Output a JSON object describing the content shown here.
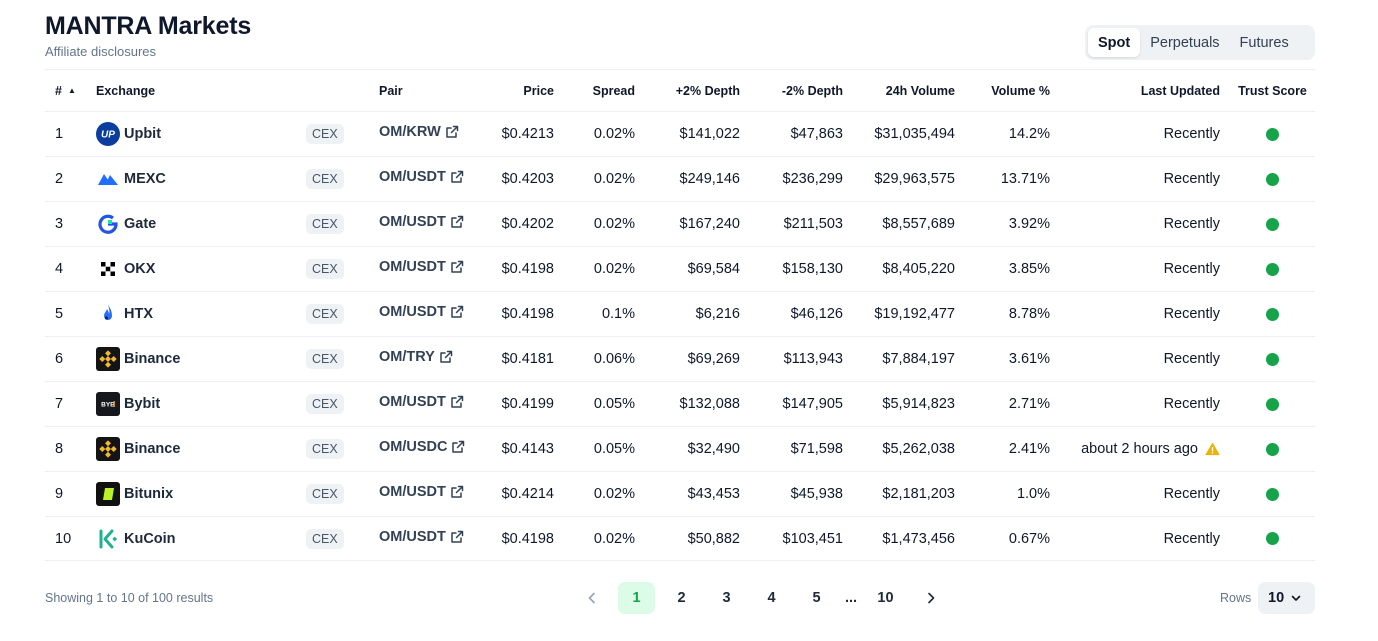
{
  "header": {
    "title": "MANTRA Markets",
    "subtitle": "Affiliate disclosures"
  },
  "tabs": [
    {
      "label": "Spot",
      "active": true
    },
    {
      "label": "Perpetuals",
      "active": false
    },
    {
      "label": "Futures",
      "active": false
    }
  ],
  "table": {
    "columns": {
      "rank": "#",
      "exchange": "Exchange",
      "pair": "Pair",
      "price": "Price",
      "spread": "Spread",
      "plus_depth": "+2% Depth",
      "minus_depth": "-2% Depth",
      "volume": "24h Volume",
      "volume_pct": "Volume %",
      "last_updated": "Last Updated",
      "trust": "Trust Score"
    },
    "rows": [
      {
        "rank": "1",
        "exchange": "Upbit",
        "logo": "upbit-logo",
        "type": "CEX",
        "pair": "OM/KRW",
        "price": "$0.4213",
        "spread": "0.02%",
        "plus_depth": "$141,022",
        "minus_depth": "$47,863",
        "volume": "$31,035,494",
        "volume_pct": "14.2%",
        "updated": "Recently",
        "warning": false,
        "trust_color": "#16a34a"
      },
      {
        "rank": "2",
        "exchange": "MEXC",
        "logo": "mexc-logo",
        "type": "CEX",
        "pair": "OM/USDT",
        "price": "$0.4203",
        "spread": "0.02%",
        "plus_depth": "$249,146",
        "minus_depth": "$236,299",
        "volume": "$29,963,575",
        "volume_pct": "13.71%",
        "updated": "Recently",
        "warning": false,
        "trust_color": "#16a34a"
      },
      {
        "rank": "3",
        "exchange": "Gate",
        "logo": "gate-logo",
        "type": "CEX",
        "pair": "OM/USDT",
        "price": "$0.4202",
        "spread": "0.02%",
        "plus_depth": "$167,240",
        "minus_depth": "$211,503",
        "volume": "$8,557,689",
        "volume_pct": "3.92%",
        "updated": "Recently",
        "warning": false,
        "trust_color": "#16a34a"
      },
      {
        "rank": "4",
        "exchange": "OKX",
        "logo": "okx-logo",
        "type": "CEX",
        "pair": "OM/USDT",
        "price": "$0.4198",
        "spread": "0.02%",
        "plus_depth": "$69,584",
        "minus_depth": "$158,130",
        "volume": "$8,405,220",
        "volume_pct": "3.85%",
        "updated": "Recently",
        "warning": false,
        "trust_color": "#16a34a"
      },
      {
        "rank": "5",
        "exchange": "HTX",
        "logo": "htx-logo",
        "type": "CEX",
        "pair": "OM/USDT",
        "price": "$0.4198",
        "spread": "0.1%",
        "plus_depth": "$6,216",
        "minus_depth": "$46,126",
        "volume": "$19,192,477",
        "volume_pct": "8.78%",
        "updated": "Recently",
        "warning": false,
        "trust_color": "#16a34a"
      },
      {
        "rank": "6",
        "exchange": "Binance",
        "logo": "binance-logo",
        "type": "CEX",
        "pair": "OM/TRY",
        "price": "$0.4181",
        "spread": "0.06%",
        "plus_depth": "$69,269",
        "minus_depth": "$113,943",
        "volume": "$7,884,197",
        "volume_pct": "3.61%",
        "updated": "Recently",
        "warning": false,
        "trust_color": "#16a34a"
      },
      {
        "rank": "7",
        "exchange": "Bybit",
        "logo": "bybit-logo",
        "type": "CEX",
        "pair": "OM/USDT",
        "price": "$0.4199",
        "spread": "0.05%",
        "plus_depth": "$132,088",
        "minus_depth": "$147,905",
        "volume": "$5,914,823",
        "volume_pct": "2.71%",
        "updated": "Recently",
        "warning": false,
        "trust_color": "#16a34a"
      },
      {
        "rank": "8",
        "exchange": "Binance",
        "logo": "binance-logo",
        "type": "CEX",
        "pair": "OM/USDC",
        "price": "$0.4143",
        "spread": "0.05%",
        "plus_depth": "$32,490",
        "minus_depth": "$71,598",
        "volume": "$5,262,038",
        "volume_pct": "2.41%",
        "updated": "about 2 hours ago",
        "warning": true,
        "trust_color": "#16a34a"
      },
      {
        "rank": "9",
        "exchange": "Bitunix",
        "logo": "bitunix-logo",
        "type": "CEX",
        "pair": "OM/USDT",
        "price": "$0.4214",
        "spread": "0.02%",
        "plus_depth": "$43,453",
        "minus_depth": "$45,938",
        "volume": "$2,181,203",
        "volume_pct": "1.0%",
        "updated": "Recently",
        "warning": false,
        "trust_color": "#16a34a"
      },
      {
        "rank": "10",
        "exchange": "KuCoin",
        "logo": "kucoin-logo",
        "type": "CEX",
        "pair": "OM/USDT",
        "price": "$0.4198",
        "spread": "0.02%",
        "plus_depth": "$50,882",
        "minus_depth": "$103,451",
        "volume": "$1,473,456",
        "volume_pct": "0.67%",
        "updated": "Recently",
        "warning": false,
        "trust_color": "#16a34a"
      }
    ]
  },
  "footer": {
    "showing": "Showing 1 to 10 of 100 results",
    "pages": [
      "1",
      "2",
      "3",
      "4",
      "5",
      "...",
      "10"
    ],
    "current_page": "1",
    "rows_label": "Rows",
    "rows_value": "10"
  },
  "colors": {
    "accent_green": "#16a34a",
    "active_page_bg": "#dcfce7",
    "warning": "#eab308"
  }
}
